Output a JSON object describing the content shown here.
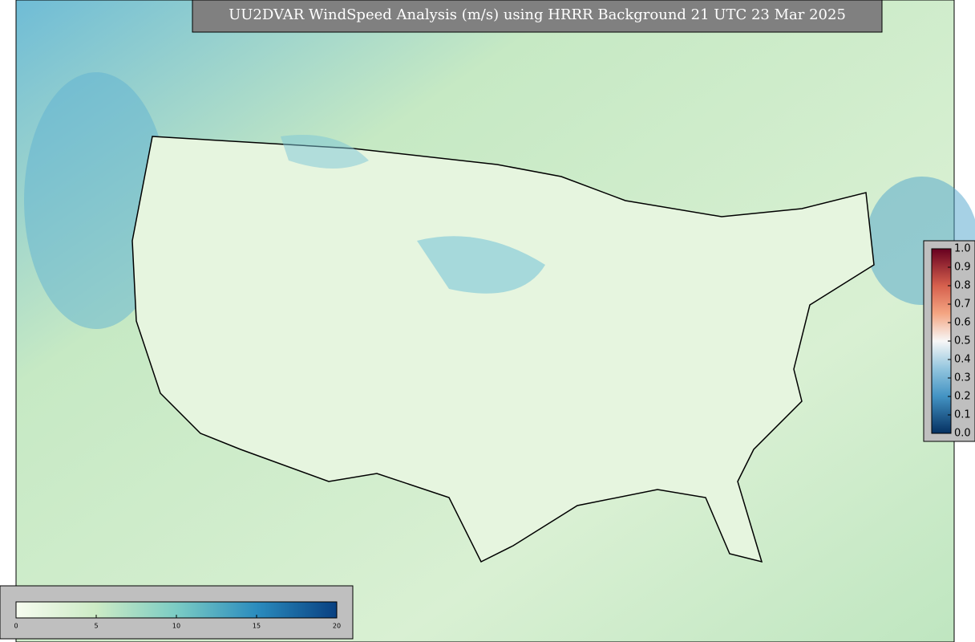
{
  "title": "UU2DVAR WindSpeed Analysis (m/s) using HRRR Background 21 UTC 23 Mar 2025",
  "wind_colorbar": {
    "lim": [
      0,
      20
    ],
    "ticks": [
      0,
      5,
      10,
      15,
      20
    ]
  },
  "station_colorbar": {
    "lim": [
      0,
      1
    ],
    "ticks": [
      {
        "value": 0,
        "label": "0.0"
      },
      {
        "value": 0.1,
        "label": "0.1"
      },
      {
        "value": 0.2,
        "label": "0.2"
      },
      {
        "value": 0.3,
        "label": "0.3"
      },
      {
        "value": 0.4,
        "label": "0.4"
      },
      {
        "value": 0.5,
        "label": "0.5"
      },
      {
        "value": 0.6,
        "label": "0.6"
      },
      {
        "value": 0.7,
        "label": "0.7"
      },
      {
        "value": 0.8,
        "label": "0.8"
      },
      {
        "value": 0.9,
        "label": "0.9"
      },
      {
        "value": 1,
        "label": "1.0"
      }
    ]
  }
}
